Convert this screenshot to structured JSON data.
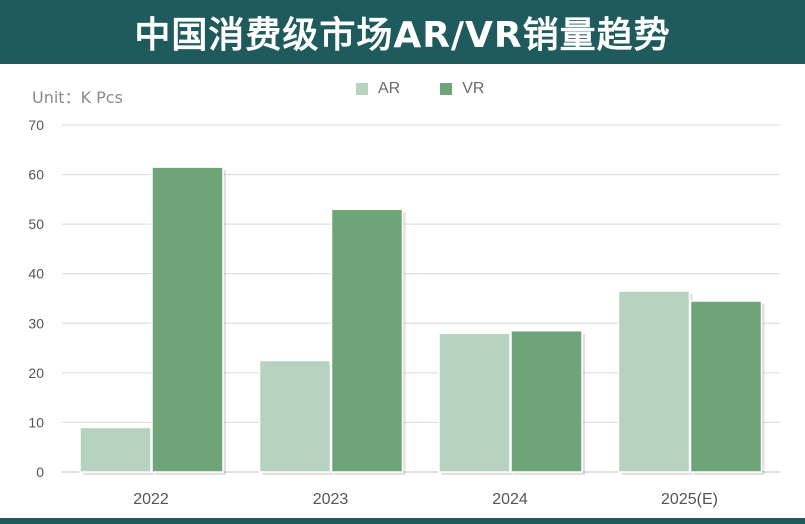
{
  "chart_data": {
    "type": "bar",
    "title": "中国消费级市场AR/VR销量趋势",
    "unit_label": "Unit：K Pcs",
    "categories": [
      "2022",
      "2023",
      "2024",
      "2025(E)"
    ],
    "series": [
      {
        "name": "AR",
        "values": [
          9,
          22.5,
          28,
          36.5
        ],
        "color": "#b7d3c0"
      },
      {
        "name": "VR",
        "values": [
          61.5,
          53,
          28.5,
          34.5
        ],
        "color": "#6fa378"
      }
    ],
    "ylim": [
      0,
      70
    ],
    "yticks": [
      "0",
      "10",
      "20",
      "30",
      "40",
      "50",
      "60",
      "70"
    ],
    "grid": true,
    "legend_position": "top-center"
  },
  "colors": {
    "header_bg": "#1f5a5c",
    "grid": "#d9d9d9",
    "axis_text": "#555555"
  }
}
